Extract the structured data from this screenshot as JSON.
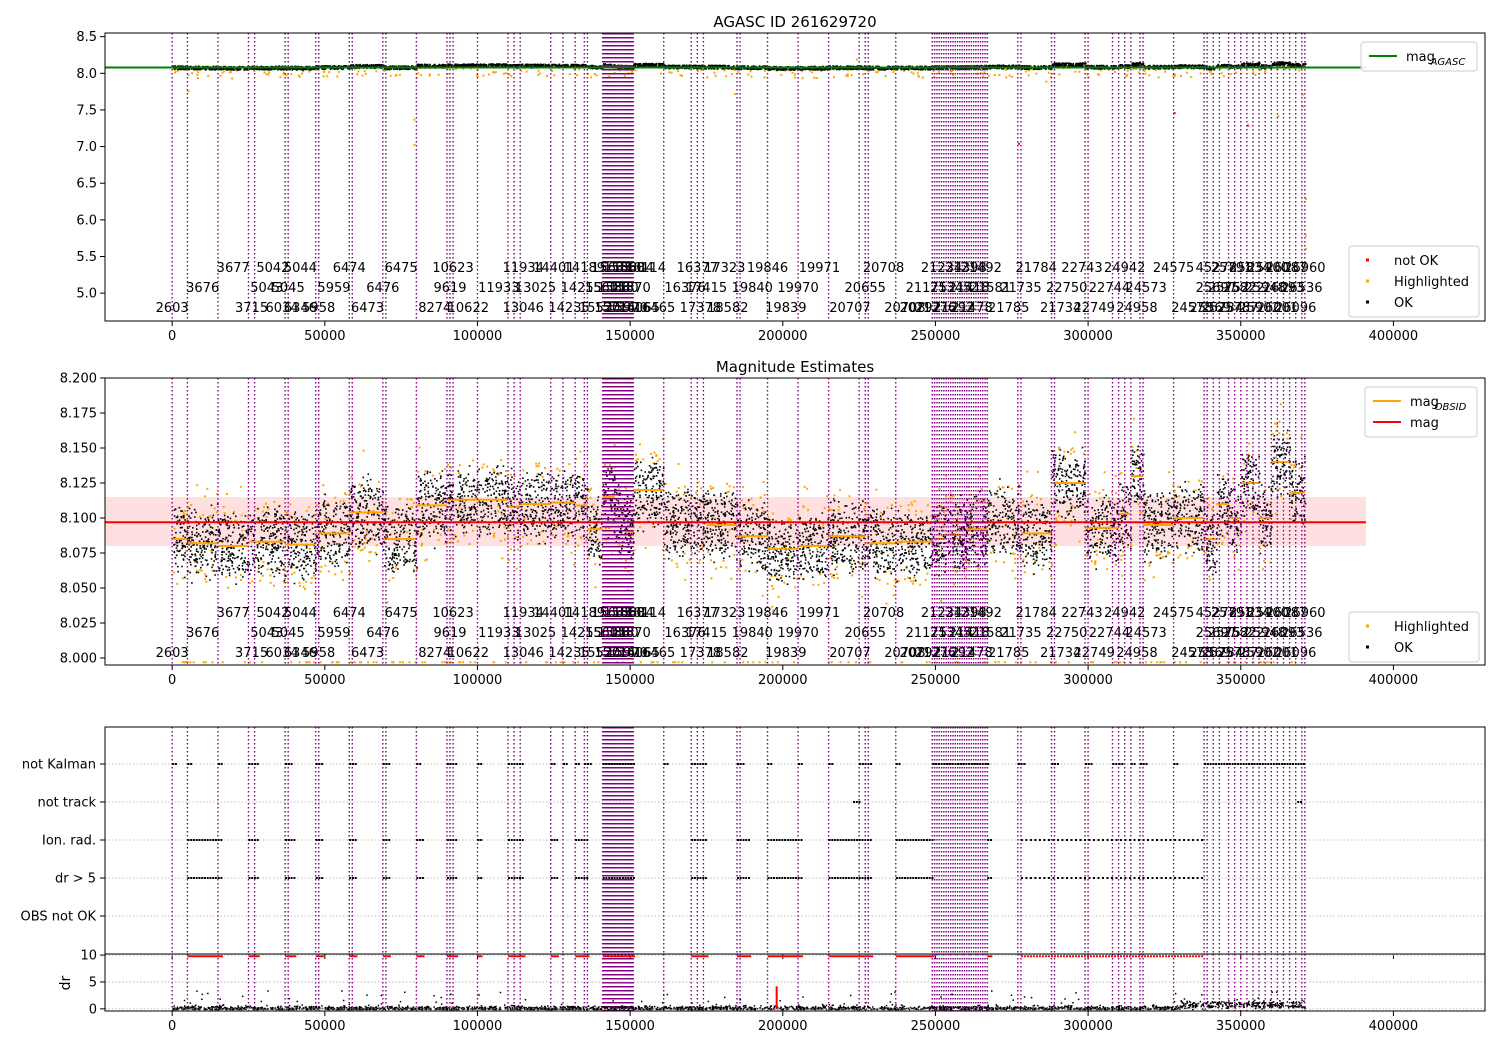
{
  "chart_data": [
    {
      "type": "scatter",
      "title": "AGASC ID 261629720",
      "xlim": [
        -22000,
        430000
      ],
      "ylim": [
        4.62,
        8.55
      ],
      "xticks": [
        0,
        50000,
        100000,
        150000,
        200000,
        250000,
        300000,
        350000,
        400000
      ],
      "yticks": [
        5.0,
        5.5,
        6.0,
        6.5,
        7.0,
        7.5,
        8.0,
        8.5
      ],
      "grid": false,
      "legend_top": {
        "placement": "upper-right",
        "entries": [
          {
            "label": "mag",
            "sub": "AGASC",
            "color": "#008000"
          }
        ]
      },
      "legend_bottom": {
        "placement": "lower-right",
        "entries": [
          {
            "label": "not OK",
            "color": "#ff0000"
          },
          {
            "label": "Highlighted",
            "color": "#ffa500"
          },
          {
            "label": "OK",
            "color": "#000000"
          }
        ]
      },
      "series": [
        {
          "name": "mag AGASC",
          "kind": "hline",
          "y": 8.08,
          "x": [
            -22000,
            391000
          ],
          "color": "#008000"
        }
      ]
    },
    {
      "type": "scatter",
      "title": "Magnitude Estimates",
      "xlim": [
        -22000,
        430000
      ],
      "ylim": [
        7.995,
        8.2
      ],
      "xticks": [
        0,
        50000,
        100000,
        150000,
        200000,
        250000,
        300000,
        350000,
        400000
      ],
      "yticks": [
        8.0,
        8.025,
        8.05,
        8.075,
        8.1,
        8.125,
        8.15,
        8.175,
        8.2
      ],
      "grid": false,
      "legend_top": {
        "placement": "upper-right",
        "entries": [
          {
            "label": "mag",
            "sub": "OBSID",
            "color": "#ffa500"
          },
          {
            "label": "mag",
            "color": "#ff0000"
          }
        ]
      },
      "legend_bottom": {
        "placement": "lower-right",
        "entries": [
          {
            "label": "Highlighted",
            "color": "#ffa500"
          },
          {
            "label": "OK",
            "color": "#000000"
          }
        ]
      },
      "series": [
        {
          "name": "mag",
          "kind": "hline",
          "y": 8.097,
          "band": [
            8.08,
            8.115
          ],
          "x": [
            -22000,
            391000
          ],
          "color": "#ff0000"
        }
      ],
      "segments": [
        [
          0,
          5000,
          8.085
        ],
        [
          5000,
          15000,
          8.082
        ],
        [
          15000,
          25000,
          8.08
        ],
        [
          25000,
          37000,
          8.083
        ],
        [
          37000,
          47000,
          8.081
        ],
        [
          47000,
          58000,
          8.089
        ],
        [
          58000,
          69000,
          8.104
        ],
        [
          69000,
          80000,
          8.085
        ],
        [
          80000,
          90000,
          8.109
        ],
        [
          90000,
          110000,
          8.113
        ],
        [
          110000,
          114000,
          8.108
        ],
        [
          114000,
          124000,
          8.11
        ],
        [
          124000,
          132000,
          8.111
        ],
        [
          132000,
          136000,
          8.109
        ],
        [
          136000,
          141000,
          8.092
        ],
        [
          141000,
          145000,
          8.115
        ],
        [
          145000,
          149000,
          8.1
        ],
        [
          149000,
          151000,
          8.09
        ],
        [
          151000,
          161000,
          8.12
        ],
        [
          161000,
          175000,
          8.097
        ],
        [
          175000,
          185000,
          8.095
        ],
        [
          185000,
          195000,
          8.087
        ],
        [
          195000,
          205000,
          8.078
        ],
        [
          205000,
          215000,
          8.08
        ],
        [
          215000,
          227000,
          8.087
        ],
        [
          227000,
          237000,
          8.082
        ],
        [
          237000,
          249000,
          8.083
        ],
        [
          249000,
          253000,
          8.085
        ],
        [
          253000,
          260000,
          8.088
        ],
        [
          260000,
          267000,
          8.092
        ],
        [
          267000,
          278000,
          8.097
        ],
        [
          278000,
          288000,
          8.089
        ],
        [
          288000,
          299000,
          8.125
        ],
        [
          299000,
          310000,
          8.093
        ],
        [
          310000,
          314000,
          8.103
        ],
        [
          314000,
          318000,
          8.13
        ],
        [
          318000,
          328000,
          8.095
        ],
        [
          328000,
          338000,
          8.1
        ],
        [
          338000,
          342000,
          8.085
        ],
        [
          342000,
          346000,
          8.11
        ],
        [
          346000,
          350000,
          8.1
        ],
        [
          350000,
          356000,
          8.125
        ],
        [
          356000,
          360000,
          8.1
        ],
        [
          360000,
          366000,
          8.14
        ],
        [
          366000,
          371000,
          8.118
        ]
      ]
    },
    {
      "type": "scatter",
      "title": "",
      "xlim": [
        -22000,
        430000
      ],
      "xticks": [
        0,
        50000,
        100000,
        150000,
        200000,
        250000,
        300000,
        350000,
        400000
      ],
      "categories": [
        "OBS not OK",
        "dr > 5",
        "Ion. rad.",
        "not track",
        "not Kalman"
      ],
      "grid": true
    },
    {
      "type": "scatter",
      "title": "",
      "ylabel": "dr",
      "xlim": [
        -22000,
        430000
      ],
      "ylim": [
        -0.4,
        10.2
      ],
      "xticks": [
        0,
        50000,
        100000,
        150000,
        200000,
        250000,
        300000,
        350000,
        400000
      ],
      "yticks": [
        0,
        5,
        10
      ],
      "grid": true
    }
  ],
  "obsid_lines": [
    0,
    5000,
    15000,
    25000,
    27000,
    37000,
    38000,
    47000,
    48000,
    58000,
    59000,
    69000,
    70000,
    80000,
    90000,
    91000,
    92000,
    100000,
    110000,
    112000,
    114000,
    124000,
    128000,
    132000,
    135000,
    136000,
    141000,
    161000,
    170000,
    172000,
    174000,
    185000,
    186000,
    195000,
    205000,
    215000,
    225000,
    227000,
    228000,
    237000,
    249000,
    267000,
    277000,
    278000,
    288000,
    289000,
    299000,
    300000,
    308000,
    310000,
    312000,
    314000,
    317000,
    318000,
    328000,
    338000,
    339000,
    341000,
    343000,
    346000,
    348000,
    350000,
    352000,
    354000,
    356000,
    358000,
    360000,
    362000,
    364000,
    366000,
    368000,
    370000,
    371000
  ],
  "obsid_dense_ranges": [
    [
      141000,
      151000,
      2
    ],
    [
      249000,
      267000,
      10
    ]
  ],
  "obsid_labels": [
    [
      2603,
      0,
      0
    ],
    [
      3676,
      10000,
      1
    ],
    [
      3677,
      20000,
      2
    ],
    [
      3715,
      26000,
      0
    ],
    [
      5043,
      31000,
      1
    ],
    [
      5042,
      33000,
      2
    ],
    [
      6034,
      36000,
      0
    ],
    [
      5045,
      38000,
      1
    ],
    [
      5044,
      42000,
      2
    ],
    [
      6346,
      42000,
      0
    ],
    [
      5958,
      48000,
      0
    ],
    [
      5959,
      53000,
      1
    ],
    [
      6474,
      58000,
      2
    ],
    [
      6473,
      64000,
      0
    ],
    [
      6476,
      69000,
      1
    ],
    [
      6475,
      75000,
      2
    ],
    [
      8274,
      86000,
      0
    ],
    [
      9619,
      91000,
      1
    ],
    [
      10623,
      92000,
      2
    ],
    [
      10622,
      97000,
      0
    ],
    [
      11933,
      107000,
      1
    ],
    [
      11934,
      115000,
      2
    ],
    [
      13046,
      115000,
      0
    ],
    [
      13025,
      119000,
      1
    ],
    [
      14401,
      125000,
      2
    ],
    [
      14235,
      130000,
      0
    ],
    [
      14255,
      134000,
      1
    ],
    [
      14189,
      135000,
      2
    ],
    [
      15520,
      140000,
      0
    ],
    [
      15601,
      142000,
      1
    ],
    [
      15633,
      144000,
      2
    ],
    [
      15714,
      145000,
      0
    ],
    [
      15880,
      146000,
      1
    ],
    [
      15860,
      148000,
      2
    ],
    [
      15970,
      149000,
      0
    ],
    [
      15870,
      150000,
      1
    ],
    [
      15884,
      151000,
      2
    ],
    [
      16065,
      153000,
      0
    ],
    [
      16114,
      155000,
      2
    ],
    [
      16465,
      158000,
      0
    ],
    [
      16376,
      168000,
      1
    ],
    [
      16377,
      172000,
      2
    ],
    [
      17378,
      173000,
      0
    ],
    [
      17415,
      175000,
      1
    ],
    [
      17323,
      181000,
      2
    ],
    [
      18582,
      182000,
      0
    ],
    [
      19840,
      190000,
      1
    ],
    [
      19846,
      195000,
      2
    ],
    [
      19839,
      201000,
      0
    ],
    [
      19970,
      205000,
      1
    ],
    [
      19971,
      212000,
      2
    ],
    [
      20707,
      222000,
      0
    ],
    [
      20655,
      227000,
      1
    ],
    [
      20708,
      233000,
      2
    ],
    [
      20708,
      240000,
      0
    ],
    [
      20797,
      245000,
      0
    ],
    [
      21175,
      247000,
      1
    ],
    [
      21234,
      252000,
      2
    ],
    [
      21276,
      250000,
      0
    ],
    [
      21292,
      256000,
      0
    ],
    [
      21345,
      255000,
      1
    ],
    [
      21418,
      261000,
      1
    ],
    [
      21398,
      260000,
      2
    ],
    [
      21478,
      262000,
      0
    ],
    [
      21492,
      265000,
      2
    ],
    [
      21581,
      268000,
      1
    ],
    [
      21785,
      274000,
      0
    ],
    [
      21735,
      278000,
      1
    ],
    [
      21784,
      283000,
      2
    ],
    [
      21734,
      291000,
      0
    ],
    [
      22750,
      293000,
      1
    ],
    [
      22743,
      298000,
      2
    ],
    [
      22749,
      302000,
      0
    ],
    [
      22744,
      307000,
      1
    ],
    [
      24942,
      312000,
      2
    ],
    [
      24958,
      316000,
      0
    ],
    [
      24573,
      319000,
      1
    ],
    [
      24575,
      328000,
      2
    ],
    [
      24578,
      334000,
      0
    ],
    [
      25569,
      340000,
      0
    ],
    [
      25697,
      342000,
      1
    ],
    [
      45278,
      342000,
      2
    ],
    [
      25734,
      344000,
      0
    ],
    [
      25752,
      346000,
      1
    ],
    [
      25791,
      347000,
      2
    ],
    [
      25787,
      349000,
      0
    ],
    [
      25822,
      351000,
      1
    ],
    [
      25834,
      353000,
      2
    ],
    [
      25902,
      356000,
      0
    ],
    [
      25948,
      358000,
      1
    ],
    [
      25900,
      359000,
      2
    ],
    [
      26001,
      362000,
      0
    ],
    [
      26093,
      364000,
      1
    ],
    [
      26087,
      365000,
      2
    ],
    [
      26096,
      368000,
      0
    ],
    [
      26536,
      370000,
      1
    ],
    [
      26960,
      371000,
      2
    ]
  ],
  "row_segments": {
    "not Kalman": [
      [
        0,
        1000
      ],
      [
        5000,
        6000
      ],
      [
        15000,
        16000
      ],
      [
        25000,
        28000
      ],
      [
        37000,
        39000
      ],
      [
        47000,
        49000
      ],
      [
        58000,
        60000
      ],
      [
        69000,
        71000
      ],
      [
        80000,
        81000
      ],
      [
        90000,
        93000
      ],
      [
        100000,
        101000
      ],
      [
        110000,
        115000
      ],
      [
        124000,
        125000
      ],
      [
        128000,
        129000
      ],
      [
        132000,
        133000
      ],
      [
        135000,
        137000
      ],
      [
        141000,
        151000
      ],
      [
        161000,
        162000
      ],
      [
        170000,
        175000
      ],
      [
        185000,
        187000
      ],
      [
        195000,
        196000
      ],
      [
        205000,
        206000
      ],
      [
        215000,
        216000
      ],
      [
        225000,
        229000
      ],
      [
        237000,
        238000
      ],
      [
        249000,
        267000
      ],
      [
        277000,
        279000
      ],
      [
        288000,
        290000
      ],
      [
        299000,
        301000
      ],
      [
        308000,
        309000
      ],
      [
        310000,
        311000
      ],
      [
        314000,
        315000
      ],
      [
        317000,
        319000
      ],
      [
        328000,
        329000
      ],
      [
        338000,
        371000
      ]
    ],
    "not track": [
      [
        223000,
        225500
      ],
      [
        368500,
        369500
      ]
    ],
    "Ion. rad.": [
      [
        5000,
        16000
      ],
      [
        25000,
        28000
      ],
      [
        37000,
        40000
      ],
      [
        47000,
        49000
      ],
      [
        58000,
        60000
      ],
      [
        69000,
        71000
      ],
      [
        80000,
        82000
      ],
      [
        90000,
        93000
      ],
      [
        100000,
        101000
      ],
      [
        110000,
        115000
      ],
      [
        124000,
        126000
      ],
      [
        132000,
        136000
      ],
      [
        170000,
        175000
      ],
      [
        185000,
        189000
      ],
      [
        195000,
        206000
      ],
      [
        215000,
        229000
      ],
      [
        237000,
        249000
      ],
      [
        267000,
        268000
      ],
      [
        278000,
        337000
      ]
    ],
    "dr > 5": [
      [
        5000,
        16000
      ],
      [
        25000,
        28000
      ],
      [
        37000,
        40000
      ],
      [
        47000,
        49000
      ],
      [
        58000,
        60000
      ],
      [
        69000,
        71000
      ],
      [
        80000,
        82000
      ],
      [
        90000,
        93000
      ],
      [
        100000,
        101000
      ],
      [
        110000,
        115000
      ],
      [
        124000,
        126000
      ],
      [
        132000,
        136000
      ],
      [
        141000,
        151000
      ],
      [
        170000,
        175000
      ],
      [
        185000,
        189000
      ],
      [
        195000,
        206000
      ],
      [
        215000,
        229000
      ],
      [
        237000,
        249000
      ],
      [
        267000,
        268000
      ],
      [
        278000,
        337000
      ]
    ]
  },
  "colors": {
    "ok": "#000000",
    "highlighted": "#ffa500",
    "not_ok": "#ff0000",
    "obsid_line": "#800080",
    "agasc": "#008000",
    "mag": "#ff0000",
    "band": "#ffcccc"
  }
}
